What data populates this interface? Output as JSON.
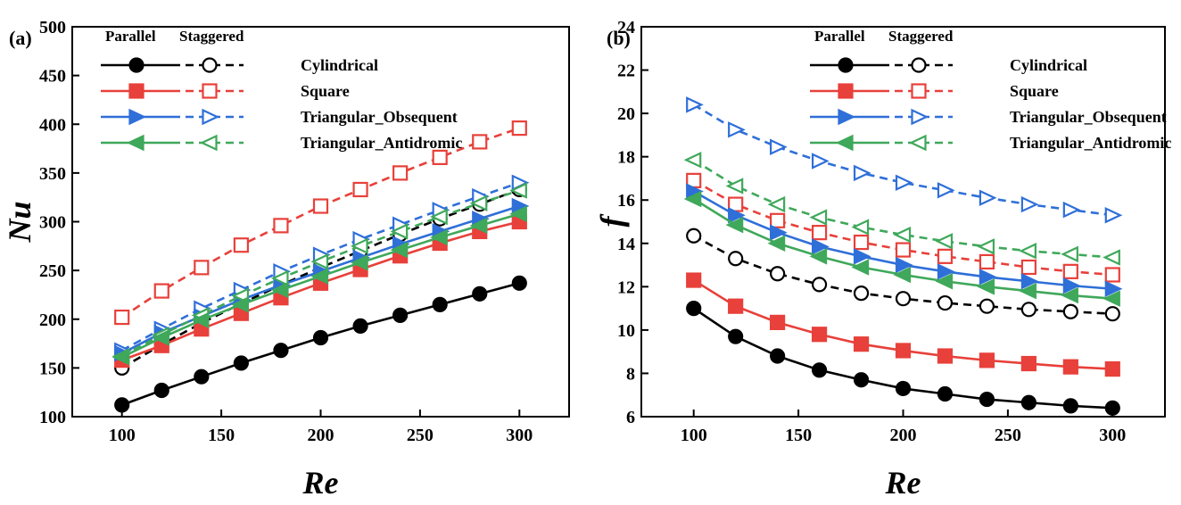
{
  "chart_data": [
    {
      "type": "line",
      "panel_label": "(a)",
      "xlabel": "Re",
      "ylabel": "Nu",
      "xlim": [
        75,
        325
      ],
      "ylim": [
        100,
        500
      ],
      "xticks": [
        100,
        150,
        200,
        250,
        300
      ],
      "yticks": [
        100,
        150,
        200,
        250,
        300,
        350,
        400,
        450,
        500
      ],
      "legend": {
        "placement": "top-left",
        "header_parallel": "Parallel",
        "header_staggered": "Staggered"
      },
      "x": [
        100,
        120,
        140,
        160,
        180,
        200,
        220,
        240,
        260,
        280,
        300
      ],
      "series": [
        {
          "name": "Cylindrical",
          "color": "#000000",
          "marker": "circle",
          "parallel": [
            112,
            127,
            141,
            155,
            168,
            181,
            193,
            204,
            215,
            226,
            237
          ],
          "staggered": [
            150,
            174,
            196,
            216,
            235,
            253,
            270,
            287,
            303,
            318,
            333
          ]
        },
        {
          "name": "Square",
          "color": "#e8403a",
          "marker": "square",
          "parallel": [
            158,
            173,
            190,
            206,
            222,
            237,
            251,
            265,
            278,
            290,
            300
          ],
          "staggered": [
            202,
            229,
            253,
            276,
            296,
            316,
            333,
            350,
            366,
            382,
            396
          ]
        },
        {
          "name": "Triangular_Obsequent",
          "color": "#2f6fd8",
          "marker": "triangle-right",
          "parallel": [
            165,
            186,
            203,
            220,
            235,
            249,
            263,
            277,
            290,
            303,
            316
          ],
          "staggered": [
            168,
            190,
            211,
            230,
            249,
            266,
            282,
            297,
            312,
            326,
            340
          ]
        },
        {
          "name": "Triangular_Antidromic",
          "color": "#3fa85a",
          "marker": "triangle-left",
          "parallel": [
            161,
            181,
            199,
            215,
            230,
            244,
            258,
            271,
            284,
            296,
            308
          ],
          "staggered": [
            162,
            184,
            204,
            224,
            242,
            259,
            275,
            290,
            305,
            319,
            332
          ]
        }
      ]
    },
    {
      "type": "line",
      "panel_label": "(b)",
      "xlabel": "Re",
      "ylabel": "f",
      "xlim": [
        75,
        325
      ],
      "ylim": [
        6,
        24
      ],
      "xticks": [
        100,
        150,
        200,
        250,
        300
      ],
      "yticks": [
        6,
        8,
        10,
        12,
        14,
        16,
        18,
        20,
        22,
        24
      ],
      "legend": {
        "placement": "top-right",
        "header_parallel": "Parallel",
        "header_staggered": "Staggered"
      },
      "x": [
        100,
        120,
        140,
        160,
        180,
        200,
        220,
        240,
        260,
        280,
        300
      ],
      "series": [
        {
          "name": "Cylindrical",
          "color": "#000000",
          "marker": "circle",
          "parallel": [
            11.0,
            9.7,
            8.8,
            8.15,
            7.7,
            7.3,
            7.05,
            6.8,
            6.65,
            6.5,
            6.4
          ],
          "staggered": [
            14.35,
            13.3,
            12.6,
            12.1,
            11.7,
            11.45,
            11.25,
            11.1,
            10.95,
            10.85,
            10.75
          ]
        },
        {
          "name": "Square",
          "color": "#e8403a",
          "marker": "square",
          "parallel": [
            12.3,
            11.1,
            10.35,
            9.8,
            9.35,
            9.05,
            8.8,
            8.6,
            8.45,
            8.3,
            8.2
          ],
          "staggered": [
            16.9,
            15.8,
            15.05,
            14.5,
            14.05,
            13.7,
            13.4,
            13.15,
            12.9,
            12.7,
            12.55
          ]
        },
        {
          "name": "Triangular_Obsequent",
          "color": "#2f6fd8",
          "marker": "triangle-right",
          "parallel": [
            16.4,
            15.3,
            14.5,
            13.85,
            13.4,
            13.0,
            12.7,
            12.45,
            12.25,
            12.05,
            11.9
          ],
          "staggered": [
            20.4,
            19.25,
            18.45,
            17.8,
            17.25,
            16.8,
            16.45,
            16.1,
            15.8,
            15.55,
            15.3
          ]
        },
        {
          "name": "Triangular_Antidromic",
          "color": "#3fa85a",
          "marker": "triangle-left",
          "parallel": [
            16.05,
            14.85,
            14.0,
            13.4,
            12.9,
            12.55,
            12.25,
            12.0,
            11.8,
            11.6,
            11.45
          ],
          "staggered": [
            17.85,
            16.65,
            15.8,
            15.2,
            14.75,
            14.4,
            14.1,
            13.85,
            13.65,
            13.5,
            13.35
          ]
        }
      ]
    }
  ]
}
